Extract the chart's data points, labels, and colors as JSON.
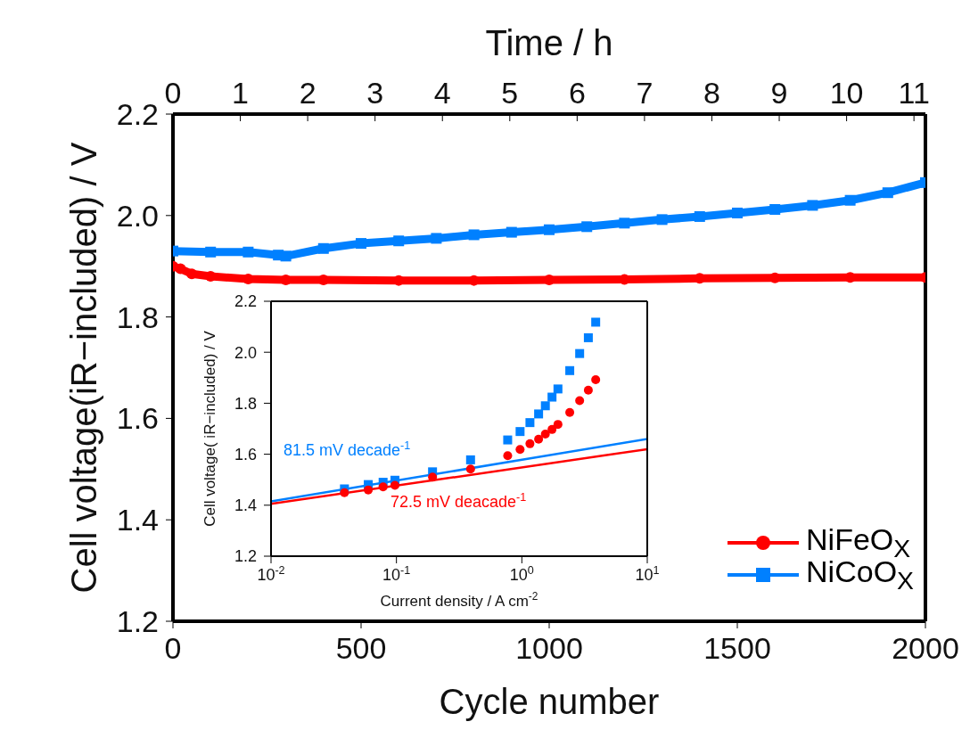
{
  "chart_data": [
    {
      "type": "line",
      "xlabel": "Cycle number",
      "ylabel": "Cell voltage(iR−included) / V",
      "x2label": "Time / h",
      "xlim": [
        0,
        2000
      ],
      "xticks": [
        0,
        500,
        1000,
        1500,
        2000
      ],
      "x2lim": [
        0,
        11.17
      ],
      "x2ticks": [
        0,
        1,
        2,
        3,
        4,
        5,
        6,
        7,
        8,
        9,
        10,
        11
      ],
      "ylim": [
        1.2,
        2.2
      ],
      "yticks": [
        1.2,
        1.4,
        1.6,
        1.8,
        {
          "value": 2,
          "label": "2.0"
        },
        2.2
      ],
      "legend": "bottom right",
      "line_style": "solid",
      "series": [
        {
          "name": "NiFeO$_{X}$",
          "color": "#ff0000",
          "marker": "circle",
          "x": [
            0,
            20,
            50,
            100,
            200,
            300,
            400,
            600,
            800,
            1000,
            1200,
            1400,
            1600,
            1800,
            2000
          ],
          "values": [
            1.9,
            1.895,
            1.885,
            1.88,
            1.875,
            1.873,
            1.873,
            1.872,
            1.872,
            1.873,
            1.874,
            1.876,
            1.877,
            1.878,
            1.878
          ]
        },
        {
          "name": "NiCoO$_{X}$",
          "color": "#0080ff",
          "marker": "square",
          "x": [
            0,
            100,
            200,
            280,
            300,
            400,
            500,
            600,
            700,
            800,
            900,
            1000,
            1100,
            1200,
            1300,
            1400,
            1500,
            1600,
            1700,
            1800,
            1900,
            2000
          ],
          "values": [
            1.93,
            1.928,
            1.928,
            1.922,
            1.92,
            1.935,
            1.945,
            1.95,
            1.955,
            1.962,
            1.967,
            1.972,
            1.978,
            1.985,
            1.992,
            1.998,
            2.005,
            2.012,
            2.02,
            2.03,
            2.045,
            2.065
          ]
        }
      ]
    },
    {
      "type": "scatter",
      "xlabel": "Current density / A cm$^{-2}$",
      "ylabel": "Cell voltage( iR−included) / V",
      "log": "x",
      "xlim": [
        0.01,
        10
      ],
      "xticks": [
        {
          "value": 0.01,
          "label": "10$^{-2}$"
        },
        {
          "value": 0.1,
          "label": "10$^{-1}$"
        },
        {
          "value": 1,
          "label": "10$^{0}$"
        },
        {
          "value": 10,
          "label": "10$^{1}$"
        }
      ],
      "ylim": [
        1.2,
        2.2
      ],
      "yticks": [
        1.2,
        1.4,
        1.6,
        1.8,
        {
          "value": 2,
          "label": "2.0"
        },
        2.2
      ],
      "series": [
        {
          "color": "#0080ff",
          "marker": "square",
          "x": [
            0.0385,
            0.0596,
            0.0783,
            0.0973,
            0.194,
            0.39,
            0.771,
            0.968,
            1.16,
            1.36,
            1.54,
            1.74,
            1.94,
            2.41,
            2.89,
            3.39,
            3.88
          ],
          "values": [
            1.464,
            1.481,
            1.49,
            1.498,
            1.531,
            1.578,
            1.656,
            1.689,
            1.724,
            1.758,
            1.79,
            1.824,
            1.856,
            1.928,
            1.995,
            2.057,
            2.118
          ]
        },
        {
          "color": "#ff0000",
          "marker": "circle",
          "x": [
            0.0385,
            0.0596,
            0.0783,
            0.0973,
            0.194,
            0.39,
            0.771,
            0.968,
            1.16,
            1.36,
            1.54,
            1.74,
            1.94,
            2.41,
            2.89,
            3.39,
            3.88
          ],
          "values": [
            1.449,
            1.46,
            1.472,
            1.478,
            1.51,
            1.542,
            1.594,
            1.619,
            1.641,
            1.659,
            1.679,
            1.697,
            1.717,
            1.764,
            1.81,
            1.851,
            1.892
          ]
        },
        {
          "type": "line",
          "color": "#0080ff",
          "marker": "none",
          "x": [
            0.01,
            10
          ],
          "values": [
            1.415,
            1.66
          ]
        },
        {
          "type": "line",
          "color": "#ff0000",
          "marker": "none",
          "x": [
            0.01,
            10
          ],
          "values": [
            1.405,
            1.62
          ]
        }
      ],
      "annotations": [
        "81.5 mV decade$^{-1}$",
        "72.5 mV deacade$^{-1}$"
      ]
    }
  ]
}
